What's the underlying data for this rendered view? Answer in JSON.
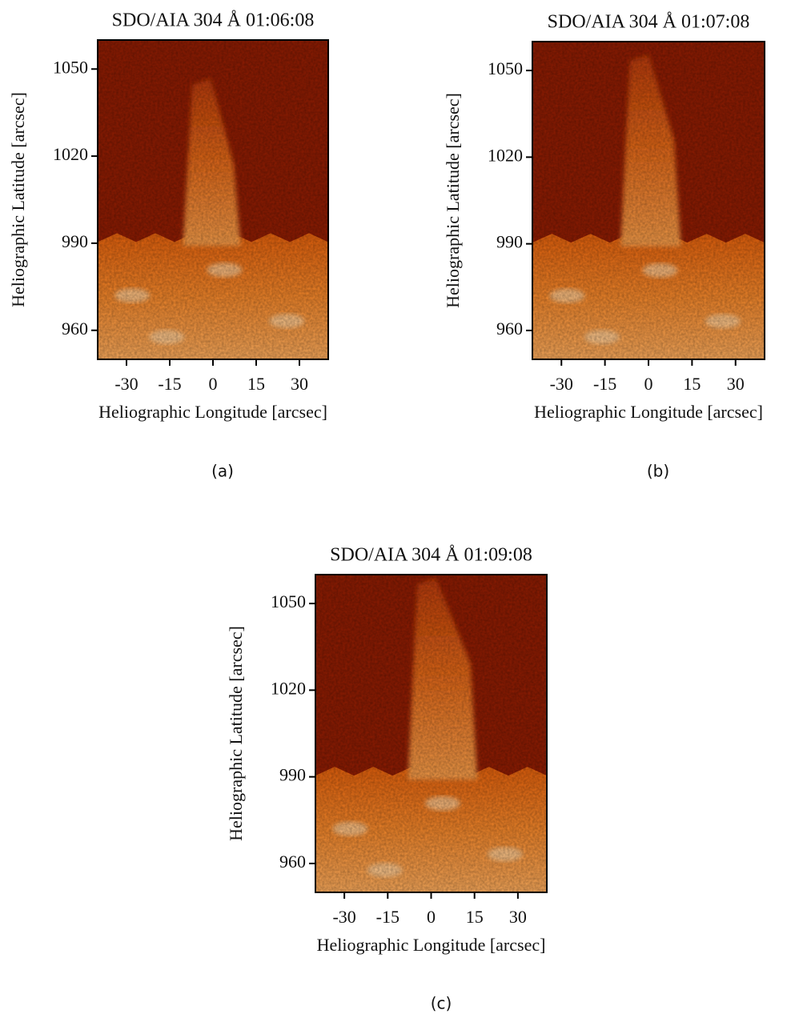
{
  "chart_data": [
    {
      "type": "image",
      "title": "SDO/AIA 304 Å 01:06:08",
      "xlabel": "Heliographic Longitude [arcsec]",
      "ylabel": "Heliographic Latitude [arcsec]",
      "xlim": [
        -40,
        40
      ],
      "ylim": [
        950,
        1060
      ],
      "xticks": [
        -30,
        -15,
        0,
        15,
        30
      ],
      "yticks": [
        960,
        990,
        1020,
        1050
      ],
      "caption": "(a)"
    },
    {
      "type": "image",
      "title": "SDO/AIA 304 Å 01:07:08",
      "xlabel": "Heliographic Longitude [arcsec]",
      "ylabel": "Heliographic Latitude [arcsec]",
      "xlim": [
        -40,
        40
      ],
      "ylim": [
        950,
        1060
      ],
      "xticks": [
        -30,
        -15,
        0,
        15,
        30
      ],
      "yticks": [
        960,
        990,
        1020,
        1050
      ],
      "caption": "(b)"
    },
    {
      "type": "image",
      "title": "SDO/AIA 304 Å 01:09:08",
      "xlabel": "Heliographic Longitude [arcsec]",
      "ylabel": "Heliographic Latitude [arcsec]",
      "xlim": [
        -40,
        40
      ],
      "ylim": [
        950,
        1060
      ],
      "xticks": [
        -30,
        -15,
        0,
        15,
        30
      ],
      "yticks": [
        960,
        990,
        1020,
        1050
      ],
      "caption": "(c)"
    }
  ]
}
